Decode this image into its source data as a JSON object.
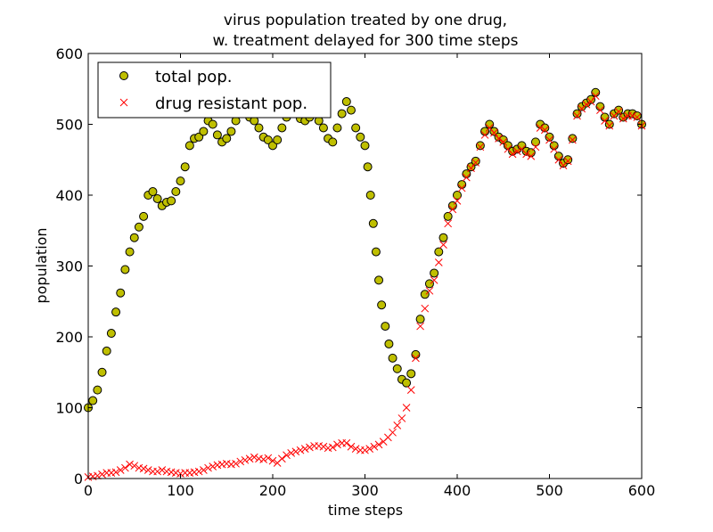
{
  "chart_data": {
    "type": "scatter",
    "title_line1": "virus population treated by one drug,",
    "title_line2": "w. treatment delayed for 300 time steps",
    "xlabel": "time steps",
    "ylabel": "population",
    "xlim": [
      0,
      600
    ],
    "ylim": [
      0,
      600
    ],
    "xticks": [
      "0",
      "100",
      "200",
      "300",
      "400",
      "500",
      "600"
    ],
    "yticks": [
      "0",
      "100",
      "200",
      "300",
      "400",
      "500",
      "600"
    ],
    "grid": false,
    "legend_position": "top-left",
    "series": [
      {
        "name": "total pop.",
        "marker": "circle",
        "color": "#bfbf00",
        "edge_color": "#000000",
        "points": [
          [
            0,
            100
          ],
          [
            5,
            110
          ],
          [
            10,
            125
          ],
          [
            15,
            150
          ],
          [
            20,
            180
          ],
          [
            25,
            205
          ],
          [
            30,
            235
          ],
          [
            35,
            262
          ],
          [
            40,
            295
          ],
          [
            45,
            320
          ],
          [
            50,
            340
          ],
          [
            55,
            355
          ],
          [
            60,
            370
          ],
          [
            65,
            400
          ],
          [
            70,
            405
          ],
          [
            75,
            395
          ],
          [
            80,
            385
          ],
          [
            85,
            390
          ],
          [
            90,
            392
          ],
          [
            95,
            405
          ],
          [
            100,
            420
          ],
          [
            105,
            440
          ],
          [
            110,
            470
          ],
          [
            115,
            480
          ],
          [
            120,
            482
          ],
          [
            125,
            490
          ],
          [
            130,
            505
          ],
          [
            135,
            500
          ],
          [
            140,
            485
          ],
          [
            145,
            475
          ],
          [
            150,
            480
          ],
          [
            155,
            490
          ],
          [
            160,
            505
          ],
          [
            165,
            515
          ],
          [
            170,
            520
          ],
          [
            175,
            510
          ],
          [
            180,
            505
          ],
          [
            185,
            495
          ],
          [
            190,
            482
          ],
          [
            195,
            478
          ],
          [
            200,
            470
          ],
          [
            205,
            478
          ],
          [
            210,
            495
          ],
          [
            215,
            510
          ],
          [
            220,
            520
          ],
          [
            225,
            515
          ],
          [
            230,
            508
          ],
          [
            235,
            505
          ],
          [
            240,
            510
          ],
          [
            245,
            515
          ],
          [
            250,
            505
          ],
          [
            255,
            495
          ],
          [
            260,
            480
          ],
          [
            265,
            475
          ],
          [
            270,
            495
          ],
          [
            275,
            515
          ],
          [
            280,
            532
          ],
          [
            285,
            520
          ],
          [
            290,
            495
          ],
          [
            295,
            482
          ],
          [
            300,
            470
          ],
          [
            303,
            440
          ],
          [
            306,
            400
          ],
          [
            309,
            360
          ],
          [
            312,
            320
          ],
          [
            315,
            280
          ],
          [
            318,
            245
          ],
          [
            322,
            215
          ],
          [
            326,
            190
          ],
          [
            330,
            170
          ],
          [
            335,
            155
          ],
          [
            340,
            140
          ],
          [
            345,
            135
          ],
          [
            350,
            148
          ],
          [
            355,
            175
          ],
          [
            360,
            225
          ],
          [
            365,
            260
          ],
          [
            370,
            275
          ],
          [
            375,
            290
          ],
          [
            380,
            320
          ],
          [
            385,
            340
          ],
          [
            390,
            370
          ],
          [
            395,
            385
          ],
          [
            400,
            400
          ],
          [
            405,
            415
          ],
          [
            410,
            430
          ],
          [
            415,
            440
          ],
          [
            420,
            448
          ],
          [
            425,
            470
          ],
          [
            430,
            490
          ],
          [
            435,
            500
          ],
          [
            440,
            490
          ],
          [
            445,
            482
          ],
          [
            450,
            478
          ],
          [
            455,
            470
          ],
          [
            460,
            462
          ],
          [
            465,
            465
          ],
          [
            470,
            470
          ],
          [
            475,
            462
          ],
          [
            480,
            460
          ],
          [
            485,
            475
          ],
          [
            490,
            500
          ],
          [
            495,
            495
          ],
          [
            500,
            482
          ],
          [
            505,
            470
          ],
          [
            510,
            455
          ],
          [
            515,
            445
          ],
          [
            520,
            450
          ],
          [
            525,
            480
          ],
          [
            530,
            515
          ],
          [
            535,
            525
          ],
          [
            540,
            530
          ],
          [
            545,
            535
          ],
          [
            550,
            545
          ],
          [
            555,
            525
          ],
          [
            560,
            510
          ],
          [
            565,
            500
          ],
          [
            570,
            515
          ],
          [
            575,
            520
          ],
          [
            580,
            510
          ],
          [
            585,
            515
          ],
          [
            590,
            515
          ],
          [
            595,
            512
          ],
          [
            600,
            500
          ]
        ]
      },
      {
        "name": "drug resistant pop.",
        "marker": "x",
        "color": "#ff0000",
        "points": [
          [
            0,
            2
          ],
          [
            5,
            3
          ],
          [
            10,
            4
          ],
          [
            15,
            6
          ],
          [
            20,
            8
          ],
          [
            25,
            8
          ],
          [
            30,
            9
          ],
          [
            35,
            12
          ],
          [
            40,
            15
          ],
          [
            45,
            20
          ],
          [
            50,
            18
          ],
          [
            55,
            15
          ],
          [
            60,
            14
          ],
          [
            65,
            12
          ],
          [
            70,
            10
          ],
          [
            75,
            10
          ],
          [
            80,
            12
          ],
          [
            85,
            10
          ],
          [
            90,
            9
          ],
          [
            95,
            8
          ],
          [
            100,
            7
          ],
          [
            105,
            8
          ],
          [
            110,
            8
          ],
          [
            115,
            9
          ],
          [
            120,
            10
          ],
          [
            125,
            12
          ],
          [
            130,
            15
          ],
          [
            135,
            17
          ],
          [
            140,
            19
          ],
          [
            145,
            20
          ],
          [
            150,
            21
          ],
          [
            155,
            20
          ],
          [
            160,
            21
          ],
          [
            165,
            24
          ],
          [
            170,
            26
          ],
          [
            175,
            28
          ],
          [
            180,
            30
          ],
          [
            185,
            28
          ],
          [
            190,
            27
          ],
          [
            195,
            29
          ],
          [
            200,
            25
          ],
          [
            205,
            22
          ],
          [
            210,
            28
          ],
          [
            215,
            33
          ],
          [
            220,
            36
          ],
          [
            225,
            38
          ],
          [
            230,
            40
          ],
          [
            235,
            42
          ],
          [
            240,
            44
          ],
          [
            245,
            46
          ],
          [
            250,
            46
          ],
          [
            255,
            45
          ],
          [
            260,
            43
          ],
          [
            265,
            44
          ],
          [
            270,
            48
          ],
          [
            275,
            50
          ],
          [
            280,
            50
          ],
          [
            285,
            45
          ],
          [
            290,
            42
          ],
          [
            295,
            40
          ],
          [
            300,
            40
          ],
          [
            305,
            42
          ],
          [
            310,
            45
          ],
          [
            315,
            48
          ],
          [
            320,
            52
          ],
          [
            325,
            58
          ],
          [
            330,
            65
          ],
          [
            335,
            75
          ],
          [
            340,
            85
          ],
          [
            345,
            100
          ],
          [
            350,
            125
          ],
          [
            355,
            170
          ],
          [
            360,
            215
          ],
          [
            365,
            240
          ],
          [
            370,
            265
          ],
          [
            375,
            280
          ],
          [
            380,
            305
          ],
          [
            385,
            330
          ],
          [
            390,
            360
          ],
          [
            395,
            380
          ],
          [
            400,
            392
          ],
          [
            405,
            410
          ],
          [
            410,
            425
          ],
          [
            415,
            438
          ],
          [
            420,
            446
          ],
          [
            425,
            468
          ],
          [
            430,
            485
          ],
          [
            435,
            495
          ],
          [
            440,
            488
          ],
          [
            445,
            480
          ],
          [
            450,
            475
          ],
          [
            455,
            465
          ],
          [
            460,
            458
          ],
          [
            465,
            462
          ],
          [
            470,
            465
          ],
          [
            475,
            458
          ],
          [
            480,
            455
          ],
          [
            485,
            468
          ],
          [
            490,
            495
          ],
          [
            495,
            492
          ],
          [
            500,
            478
          ],
          [
            505,
            465
          ],
          [
            510,
            450
          ],
          [
            515,
            442
          ],
          [
            520,
            448
          ],
          [
            525,
            478
          ],
          [
            530,
            512
          ],
          [
            535,
            522
          ],
          [
            540,
            528
          ],
          [
            545,
            532
          ],
          [
            550,
            540
          ],
          [
            555,
            520
          ],
          [
            560,
            505
          ],
          [
            565,
            498
          ],
          [
            570,
            512
          ],
          [
            575,
            518
          ],
          [
            580,
            508
          ],
          [
            585,
            512
          ],
          [
            590,
            512
          ],
          [
            595,
            510
          ],
          [
            600,
            498
          ]
        ]
      }
    ]
  }
}
